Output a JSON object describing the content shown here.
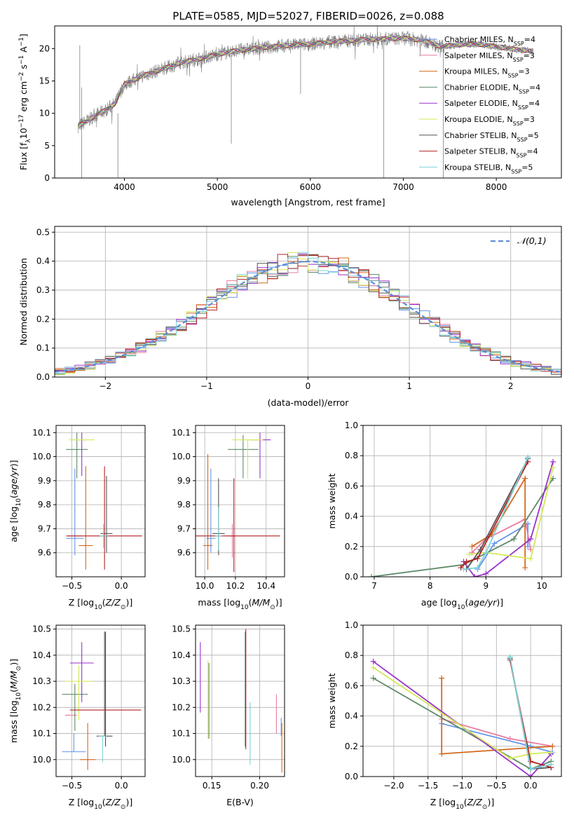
{
  "figure": {
    "title": "PLATE=0585, MJD=52027, FIBERID=0026, z=0.088"
  },
  "models": [
    {
      "name": "Chabrier MILES",
      "nssp": "4",
      "color": "#6495ed"
    },
    {
      "name": "Salpeter MILES",
      "nssp": "3",
      "color": "#e87da2"
    },
    {
      "name": "Kroupa MILES",
      "nssp": "3",
      "color": "#d2691e"
    },
    {
      "name": "Chabrier ELODIE",
      "nssp": "4",
      "color": "#5f8a6a"
    },
    {
      "name": "Salpeter ELODIE",
      "nssp": "4",
      "color": "#9932cc"
    },
    {
      "name": "Kroupa ELODIE",
      "nssp": "3",
      "color": "#d4e85a"
    },
    {
      "name": "Chabrier STELIB",
      "nssp": "5",
      "color": "#555555"
    },
    {
      "name": "Salpeter STELIB",
      "nssp": "4",
      "color": "#b22222"
    },
    {
      "name": "Kroupa STELIB",
      "nssp": "5",
      "color": "#7ed3d8"
    }
  ],
  "chart_data": [
    {
      "id": "spectrum",
      "type": "line",
      "title": "PLATE=0585, MJD=52027, FIBERID=0026, z=0.088",
      "xlabel": "wavelength [Angstrom, rest frame]",
      "ylabel": "Flux [f_λ 10^-17 erg cm^-2 s^-1 A^-1]",
      "xlim": [
        3250,
        8700
      ],
      "ylim": [
        0,
        23.5
      ],
      "xticks": [
        4000,
        5000,
        6000,
        7000,
        8000
      ],
      "yticks": [
        0,
        5,
        10,
        15,
        20
      ],
      "legend": "top-right",
      "data_color": "#808080",
      "continuum": {
        "x": [
          3500,
          3600,
          3700,
          3800,
          3900,
          4000,
          4200,
          4400,
          4600,
          4800,
          5000,
          5200,
          5400,
          5600,
          5800,
          6000,
          6200,
          6400,
          6600,
          6800,
          7000,
          7200,
          7400,
          7600,
          7800,
          8000,
          8200,
          8400
        ],
        "y": [
          8.0,
          8.8,
          9.8,
          10.5,
          11.5,
          14.5,
          15.8,
          16.8,
          17.8,
          18.4,
          19.1,
          19.7,
          20.0,
          20.3,
          20.5,
          20.7,
          21.0,
          21.2,
          21.4,
          21.5,
          21.6,
          21.3,
          20.3,
          20.6,
          20.7,
          20.3,
          19.9,
          19.6
        ]
      },
      "spikes": [
        {
          "x": 3520,
          "y0": 7.5,
          "y1": 20.5
        },
        {
          "x": 3540,
          "y0": 0,
          "y1": 14
        },
        {
          "x": 3930,
          "y0": 0,
          "y1": 10
        },
        {
          "x": 5150,
          "y0": 5.3,
          "y1": 19
        },
        {
          "x": 5895,
          "y0": 13,
          "y1": 20
        },
        {
          "x": 6790,
          "y0": 0,
          "y1": 21
        },
        {
          "x": 7430,
          "y0": 0,
          "y1": 20
        },
        {
          "x": 6720,
          "y0": 20,
          "y1": 23.5
        }
      ]
    },
    {
      "id": "residuals",
      "type": "histogram",
      "xlabel": "(data-model)/error",
      "ylabel": "Normed distribution",
      "xlim": [
        -2.5,
        2.5
      ],
      "ylim": [
        0,
        0.52
      ],
      "xticks": [
        -2,
        -1,
        0,
        1,
        2
      ],
      "yticks": [
        0,
        0.1,
        0.2,
        0.3,
        0.4,
        0.5
      ],
      "bin_width": 0.1,
      "reference": {
        "label": "𝒩(0,1)",
        "mu": 0,
        "sigma": 1,
        "color": "#5b8fd6"
      },
      "legend": "top-right",
      "grid": true
    },
    {
      "id": "age-vs-z",
      "type": "errorbar",
      "xlabel": "Z [log10(Z/Z⊙)]",
      "ylabel": "age [log10(age/yr)]",
      "xlim": [
        -0.66,
        0.24
      ],
      "ylim": [
        9.5,
        10.13
      ],
      "xticks": [
        -0.5,
        0.0
      ],
      "yticks": [
        9.6,
        9.7,
        9.8,
        9.9,
        10.0,
        10.1
      ],
      "grid": true,
      "points": [
        {
          "model": 0,
          "x": -0.47,
          "y": 9.66,
          "xerr": 0.09,
          "yerr": [
            0.07,
            0.29
          ]
        },
        {
          "model": 1,
          "x": -0.48,
          "y": 9.67,
          "xerr": 0.08,
          "yerr": [
            0.0,
            0.0
          ]
        },
        {
          "model": 2,
          "x": -0.36,
          "y": 9.63,
          "xerr": 0.07,
          "yerr": [
            0.1,
            0.33
          ]
        },
        {
          "model": 3,
          "x": -0.45,
          "y": 10.03,
          "xerr": 0.11,
          "yerr": [
            0.12,
            0.07
          ]
        },
        {
          "model": 4,
          "x": -0.4,
          "y": 10.07,
          "xerr": 0.04,
          "yerr": [
            0.15,
            0.03
          ]
        },
        {
          "model": 5,
          "x": -0.4,
          "y": 10.07,
          "xerr": 0.13,
          "yerr": [
            0.0,
            0.0
          ]
        },
        {
          "model": 6,
          "x": -0.15,
          "y": 9.68,
          "xerr": 0.06,
          "yerr": [
            0.08,
            0.24
          ]
        },
        {
          "model": 7,
          "x": -0.17,
          "y": 9.67,
          "xerr": 0.38,
          "yerr": [
            0.14,
            0.29
          ]
        },
        {
          "model": 8,
          "x": -0.18,
          "y": 9.67,
          "xerr": 0.04,
          "yerr": [
            0.05,
            0.05
          ]
        }
      ]
    },
    {
      "id": "age-vs-mass",
      "type": "errorbar",
      "xlabel": "mass [log10(M/M⊙)]",
      "ylabel": "",
      "xlim": [
        9.94,
        10.52
      ],
      "ylim": [
        9.5,
        10.13
      ],
      "xticks": [
        10.0,
        10.2,
        10.4
      ],
      "yticks": [
        9.6,
        9.7,
        9.8,
        9.9,
        10.0,
        10.1
      ],
      "grid": true,
      "points": [
        {
          "model": 0,
          "x": 10.04,
          "y": 9.66,
          "xerr": 0.03,
          "yerr": [
            0.06,
            0.29
          ]
        },
        {
          "model": 1,
          "x": 10.18,
          "y": 9.67,
          "xerr": 0.02,
          "yerr": [
            0.09,
            0.05
          ]
        },
        {
          "model": 2,
          "x": 10.02,
          "y": 9.63,
          "xerr": 0.03,
          "yerr": [
            0.1,
            0.38
          ]
        },
        {
          "model": 3,
          "x": 10.25,
          "y": 10.03,
          "xerr": 0.1,
          "yerr": [
            0.12,
            0.06
          ]
        },
        {
          "model": 4,
          "x": 10.36,
          "y": 10.07,
          "xerr": 0.07,
          "yerr": [
            0.16,
            0.03
          ]
        },
        {
          "model": 5,
          "x": 10.28,
          "y": 10.07,
          "xerr": 0.1,
          "yerr": [
            0.16,
            0.0
          ]
        },
        {
          "model": 6,
          "x": 10.09,
          "y": 9.68,
          "xerr": 0.04,
          "yerr": [
            0.09,
            0.23
          ]
        },
        {
          "model": 7,
          "x": 10.19,
          "y": 9.67,
          "xerr": 0.3,
          "yerr": [
            0.15,
            0.24
          ]
        },
        {
          "model": 8,
          "x": 10.09,
          "y": 9.67,
          "xerr": 0.02,
          "yerr": [
            0.06,
            0.12
          ]
        }
      ]
    },
    {
      "id": "weight-vs-age",
      "type": "line",
      "xlabel": "age [log10(age/yr)]",
      "ylabel": "mass weight",
      "xlim": [
        6.8,
        10.35
      ],
      "ylim": [
        0,
        1.0
      ],
      "xticks": [
        7,
        8,
        9,
        10
      ],
      "yticks": [
        0.0,
        0.2,
        0.4,
        0.6,
        0.8,
        1.0
      ],
      "grid": true,
      "series": [
        {
          "model": 0,
          "x": [
            8.85,
            9.15,
            9.75,
            9.75
          ],
          "y": [
            0.05,
            0.22,
            0.35,
            0.2
          ]
        },
        {
          "model": 1,
          "x": [
            8.75,
            9.0,
            9.7,
            9.8
          ],
          "y": [
            0.16,
            0.25,
            0.38,
            0.18
          ]
        },
        {
          "model": 2,
          "x": [
            8.75,
            9.1,
            9.7,
            9.7
          ],
          "y": [
            0.2,
            0.28,
            0.65,
            0.06
          ]
        },
        {
          "model": 3,
          "x": [
            6.95,
            8.6,
            9.5,
            10.2
          ],
          "y": [
            0.0,
            0.08,
            0.25,
            0.65
          ]
        },
        {
          "model": 4,
          "x": [
            8.6,
            8.8,
            9.0,
            9.8,
            10.2
          ],
          "y": [
            0.1,
            0.0,
            0.02,
            0.25,
            0.76
          ]
        },
        {
          "model": 5,
          "x": [
            8.7,
            9.0,
            9.8,
            10.2
          ],
          "y": [
            0.15,
            0.16,
            0.12,
            0.72
          ]
        },
        {
          "model": 6,
          "x": [
            8.65,
            8.9,
            9.75
          ],
          "y": [
            0.05,
            0.18,
            0.78
          ]
        },
        {
          "model": 7,
          "x": [
            8.55,
            8.65,
            8.85,
            9.75
          ],
          "y": [
            0.06,
            0.1,
            0.12,
            0.76
          ]
        },
        {
          "model": 8,
          "x": [
            8.6,
            8.85,
            9.0,
            9.75
          ],
          "y": [
            0.05,
            0.06,
            0.16,
            0.79
          ]
        }
      ]
    },
    {
      "id": "mass-vs-z",
      "type": "errorbar",
      "xlabel": "Z [log10(Z/Z⊙)]",
      "ylabel": "mass [log10(M/M⊙)]",
      "xlim": [
        -0.66,
        0.24
      ],
      "ylim": [
        9.935,
        10.515
      ],
      "xticks": [
        -0.5,
        0.0
      ],
      "yticks": [
        10.0,
        10.1,
        10.2,
        10.3,
        10.4,
        10.5
      ],
      "grid": true,
      "points": [
        {
          "model": 0,
          "x": -0.48,
          "y": 10.03,
          "xerr": 0.12,
          "yerr": [
            0.0,
            0.07
          ]
        },
        {
          "model": 1,
          "x": -0.51,
          "y": 10.17,
          "xerr": 0.06,
          "yerr": [
            0.0,
            0.0
          ]
        },
        {
          "model": 2,
          "x": -0.34,
          "y": 10.0,
          "xerr": 0.08,
          "yerr": [
            0.04,
            0.14
          ]
        },
        {
          "model": 3,
          "x": -0.47,
          "y": 10.25,
          "xerr": 0.13,
          "yerr": [
            0.14,
            0.04
          ]
        },
        {
          "model": 4,
          "x": -0.4,
          "y": 10.37,
          "xerr": 0.12,
          "yerr": [
            0.15,
            0.08
          ]
        },
        {
          "model": 5,
          "x": -0.43,
          "y": 10.3,
          "xerr": 0.14,
          "yerr": [
            0.15,
            0.06
          ]
        },
        {
          "model": 6,
          "x": -0.17,
          "y": 10.09,
          "xerr": 0.08,
          "yerr": [
            0.0,
            0.4
          ]
        },
        {
          "model": 7,
          "x": -0.16,
          "y": 10.19,
          "xerr": 0.36,
          "yerr": [
            0.14,
            0.3
          ]
        },
        {
          "model": 8,
          "x": -0.19,
          "y": 10.09,
          "xerr": 0.04,
          "yerr": [
            0.1,
            0.0
          ]
        }
      ]
    },
    {
      "id": "mass-vs-ebv",
      "type": "errorbar",
      "xlabel": "E(B-V)",
      "ylabel": "",
      "xlim": [
        0.133,
        0.226
      ],
      "ylim": [
        9.935,
        10.515
      ],
      "xticks": [
        0.15,
        0.2
      ],
      "yticks": [
        10.0,
        10.1,
        10.2,
        10.3,
        10.4,
        10.5
      ],
      "grid": true,
      "points": [
        {
          "model": 0,
          "x": 0.2225,
          "y": 10.12,
          "xerr": 0,
          "yerr": [
            0.03,
            0.04
          ]
        },
        {
          "model": 1,
          "x": 0.2175,
          "y": 10.17,
          "xerr": 0,
          "yerr": [
            0.07,
            0.08
          ]
        },
        {
          "model": 2,
          "x": 0.2232,
          "y": 10.05,
          "xerr": 0,
          "yerr": [
            0.1,
            0.09
          ]
        },
        {
          "model": 3,
          "x": 0.147,
          "y": 10.23,
          "xerr": 0,
          "yerr": [
            0.15,
            0.14
          ]
        },
        {
          "model": 4,
          "x": 0.138,
          "y": 10.3,
          "xerr": 0,
          "yerr": [
            0.12,
            0.15
          ]
        },
        {
          "model": 5,
          "x": 0.146,
          "y": 10.22,
          "xerr": 0,
          "yerr": [
            0.14,
            0.16
          ]
        },
        {
          "model": 6,
          "x": 0.185,
          "y": 10.27,
          "xerr": 0,
          "yerr": [
            0.22,
            0.22
          ]
        },
        {
          "model": 7,
          "x": 0.1855,
          "y": 10.3,
          "xerr": 0,
          "yerr": [
            0.26,
            0.2
          ]
        },
        {
          "model": 8,
          "x": 0.19,
          "y": 10.1,
          "xerr": 0,
          "yerr": [
            0.12,
            0.12
          ]
        }
      ]
    },
    {
      "id": "weight-vs-z",
      "type": "line",
      "xlabel": "Z [log10(Z/Z⊙)]",
      "ylabel": "mass weight",
      "xlim": [
        -2.45,
        0.45
      ],
      "ylim": [
        0,
        1.0
      ],
      "xticks": [
        -2.0,
        -1.5,
        -1.0,
        -0.5,
        0.0
      ],
      "yticks": [
        0.0,
        0.2,
        0.4,
        0.6,
        0.8,
        1.0
      ],
      "grid": true,
      "series": [
        {
          "model": 0,
          "x": [
            -1.3,
            0.0,
            0.32
          ],
          "y": [
            0.35,
            0.2,
            0.16
          ]
        },
        {
          "model": 1,
          "x": [
            -1.3,
            -0.3,
            0.32
          ],
          "y": [
            0.38,
            0.25,
            0.2
          ]
        },
        {
          "model": 2,
          "x": [
            -1.3,
            -1.3,
            0.32
          ],
          "y": [
            0.65,
            0.15,
            0.2
          ]
        },
        {
          "model": 3,
          "x": [
            -2.3,
            0.0,
            0.3
          ],
          "y": [
            0.65,
            0.05,
            0.1
          ]
        },
        {
          "model": 4,
          "x": [
            -2.3,
            0.0,
            0.3
          ],
          "y": [
            0.76,
            0.0,
            0.15
          ]
        },
        {
          "model": 5,
          "x": [
            -2.3,
            -0.3,
            0.0,
            0.3
          ],
          "y": [
            0.72,
            0.12,
            0.15,
            0.16
          ]
        },
        {
          "model": 6,
          "x": [
            -0.3,
            0.0,
            0.3
          ],
          "y": [
            0.78,
            0.05,
            0.06
          ]
        },
        {
          "model": 7,
          "x": [
            -0.3,
            0.0,
            0.3
          ],
          "y": [
            0.77,
            0.1,
            0.06
          ]
        },
        {
          "model": 8,
          "x": [
            -0.3,
            0.0,
            0.3
          ],
          "y": [
            0.79,
            0.05,
            0.08
          ]
        }
      ]
    }
  ]
}
